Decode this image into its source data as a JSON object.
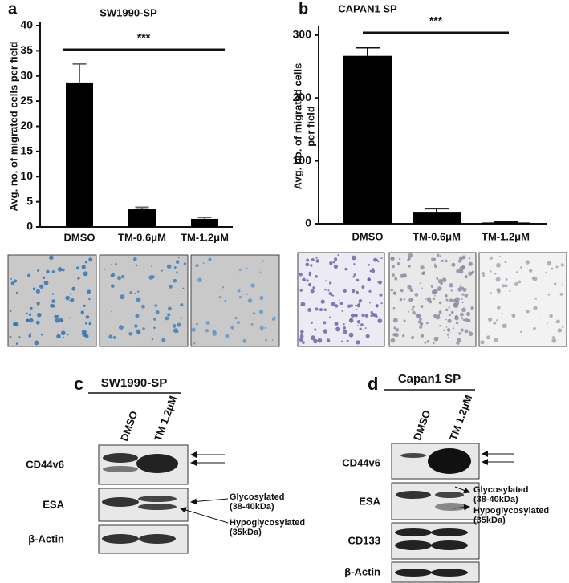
{
  "chart_data": [
    {
      "type": "bar",
      "title": "SW1990-SP",
      "ylabel": [
        "Avg. no. of migrated cells per field"
      ],
      "categories": [
        "DMSO",
        "TM-0.6μM",
        "TM-1.2μM"
      ],
      "values": [
        28.7,
        3.5,
        1.6
      ],
      "errors": [
        3.7,
        0.4,
        0.3
      ],
      "color": "#000000",
      "ylim": [
        0,
        40
      ],
      "yticks": [
        0,
        5,
        10,
        15,
        20,
        25,
        30,
        35,
        40
      ],
      "annotation": "***"
    },
    {
      "type": "bar",
      "title": "CAPAN1 SP",
      "ylabel": [
        "Avg. no. of migrated cells",
        "per field"
      ],
      "categories": [
        "DMSO",
        "TM-0.6μM",
        "TM-1.2μM"
      ],
      "values": [
        267,
        19,
        2
      ],
      "errors": [
        13,
        5,
        1
      ],
      "color": "#000000",
      "ylim": [
        0,
        310
      ],
      "yticks": [
        0,
        100,
        200,
        300
      ],
      "annotation": "***"
    }
  ],
  "panel_labels": [
    "a",
    "b",
    "c",
    "d"
  ],
  "blots": [
    {
      "title": "SW1990-SP",
      "lanes": [
        "DMSO",
        "TM 1.2μM"
      ],
      "rows": [
        "CD44v6",
        "ESA",
        "β-Actin"
      ],
      "annotations": [
        [
          "Glycosylated",
          "(38-40kDa)"
        ],
        [
          "Hypoglycosylated",
          "(35kDa)"
        ]
      ]
    },
    {
      "title": "Capan1 SP",
      "lanes": [
        "DMSO",
        "TM 1.2μM"
      ],
      "rows": [
        "CD44v6",
        "ESA",
        "CD133",
        "β-Actin"
      ],
      "annotations": [
        [
          "Glycosylated",
          "(38-40kDa)"
        ],
        [
          "Hypoglycosylated",
          "(35kDa)"
        ]
      ]
    }
  ]
}
